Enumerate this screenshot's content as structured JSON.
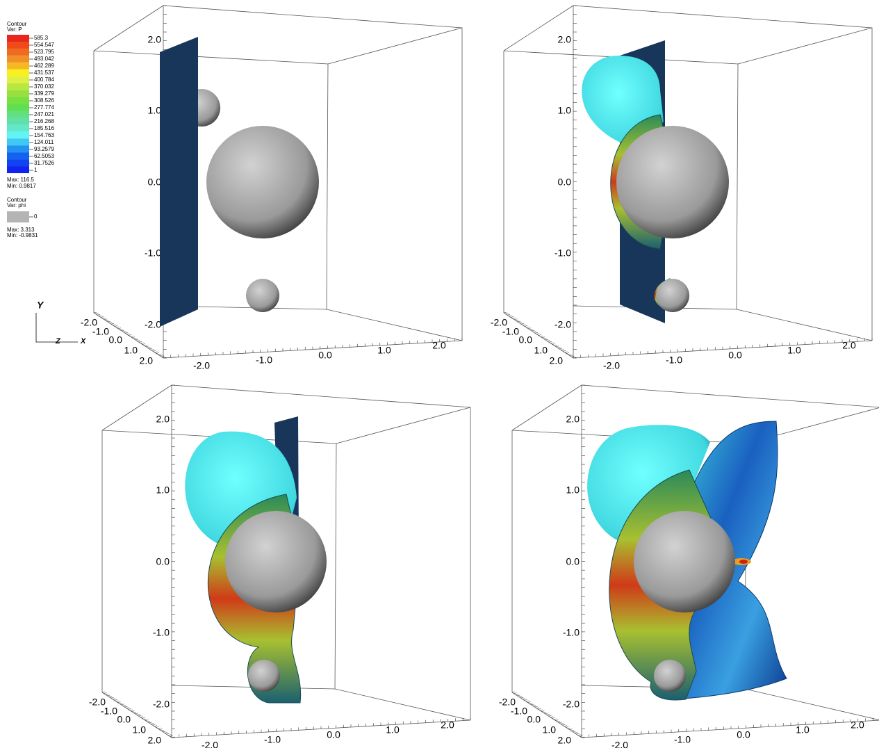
{
  "legend": {
    "title": "Contour",
    "var": "Var: P",
    "levels": [
      "585.3",
      "554.547",
      "523.795",
      "493.042",
      "462.289",
      "431.537",
      "400.784",
      "370.032",
      "339.279",
      "308.526",
      "277.774",
      "247.021",
      "216.268",
      "185.516",
      "154.763",
      "124.011",
      "93.2579",
      "62.5053",
      "31.7526",
      "1"
    ],
    "max": "Max:  116.5",
    "min": "Min:  0.9817",
    "title2": "Contour",
    "var2": "Var: phi",
    "level2": "0",
    "max2": "Max:  3.313",
    "min2": "Min: -0.9831"
  },
  "triad": {
    "y": "Y",
    "z": "Z",
    "x": "X"
  },
  "panels": [
    {
      "yticks": [
        "2.0",
        "1.0",
        "0.0",
        "-1.0",
        "-2.0"
      ],
      "zticks": [
        "-2.0",
        "-1.0",
        "0.0",
        "1.0",
        "2.0"
      ],
      "xticks": [
        "-2.0",
        "-1.0",
        "0.0",
        "1.0",
        "2.0"
      ]
    },
    {
      "yticks": [
        "2.0",
        "1.0",
        "0.0",
        "-1.0",
        "-2.0"
      ],
      "zticks": [
        "-2.0",
        "-1.0",
        "0.0",
        "1.0",
        "2.0"
      ],
      "xticks": [
        "-2.0",
        "-1.0",
        "0.0",
        "1.0",
        "2.0"
      ]
    },
    {
      "yticks": [
        "2.0",
        "1.0",
        "0.0",
        "-1.0",
        "-2.0"
      ],
      "zticks": [
        "-2.0",
        "-1.0",
        "0.0",
        "1.0",
        "2.0"
      ],
      "xticks": [
        "-2.0",
        "-1.0",
        "0.0",
        "1.0",
        "2.0"
      ]
    },
    {
      "yticks": [
        "2.0",
        "1.0",
        "0.0",
        "-1.0",
        "-2.0"
      ],
      "zticks": [
        "-2.0",
        "-1.0",
        "0.0",
        "1.0",
        "2.0"
      ],
      "xticks": [
        "-2.0",
        "-1.0",
        "0.0",
        "1.0",
        "2.0"
      ]
    }
  ]
}
